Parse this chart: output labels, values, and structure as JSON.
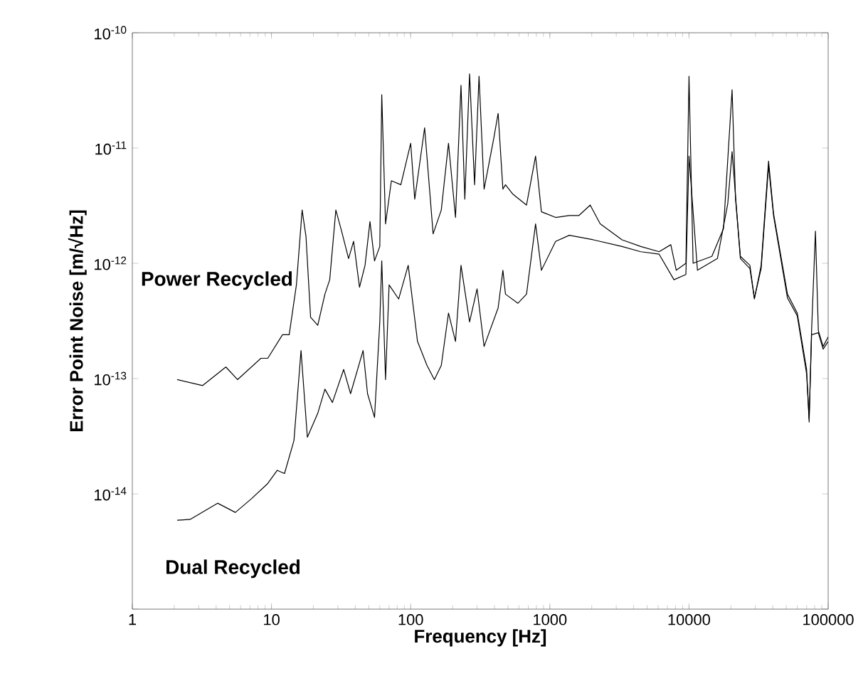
{
  "chart_data": {
    "type": "line",
    "xlabel": "Frequency [Hz]",
    "ylabel": "Error Point Noise [m/√Hz]",
    "log": "xy",
    "grid": false,
    "legend": false,
    "marker": "none",
    "line_style": "solid",
    "xlim": [
      1,
      100000
    ],
    "ylim": [
      1e-15,
      1e-10
    ],
    "xticks": [
      1,
      10,
      100,
      1000,
      10000,
      100000
    ],
    "yticks": [
      {
        "value": 1e-10,
        "label": "10$^{-10}$"
      },
      {
        "value": 1e-11,
        "label": "10$^{-11}$"
      },
      {
        "value": 1e-12,
        "label": "10$^{-12}$"
      },
      {
        "value": 1e-13,
        "label": "10$^{-13}$"
      },
      {
        "value": 1e-14,
        "label": "10$^{-14}$"
      },
      {
        "value": 1e-15,
        "label": null
      }
    ],
    "series": [
      {
        "name": "Power Recycled",
        "color": "#000000",
        "x": [
          2.1,
          3.2,
          4.7,
          5.7,
          8.4,
          9.4,
          12,
          13.4,
          15.1,
          16.6,
          17.7,
          19.1,
          21.5,
          24.2,
          26.2,
          29,
          31.9,
          35.8,
          38.9,
          42.9,
          47,
          51,
          55,
          60,
          62,
          66,
          72.7,
          85,
          100,
          107,
          126,
          145,
          166,
          187,
          210,
          230,
          245,
          265,
          288,
          310,
          337,
          395,
          425,
          460,
          480,
          540,
          680,
          790,
          870,
          1100,
          1380,
          1620,
          1950,
          2300,
          3300,
          4500,
          6100,
          7400,
          8100,
          9500,
          10000,
          10700,
          14600,
          17700,
          20400,
          21600,
          23400,
          27400,
          29500,
          33000,
          37300,
          40500,
          51000,
          60000,
          70000,
          73000,
          76000,
          81000,
          85000,
          92000,
          100000
        ],
        "values": [
          9.8e-14,
          8.7e-14,
          1.26e-13,
          9.8e-14,
          1.5e-13,
          1.5e-13,
          2.4e-13,
          2.4e-13,
          6.5e-13,
          2.9e-12,
          1.7e-12,
          3.4e-13,
          2.9e-13,
          5.4e-13,
          7.2e-13,
          2.9e-12,
          1.9e-12,
          1.1e-12,
          1.55e-12,
          6.2e-13,
          9.6e-13,
          2.3e-12,
          1.05e-12,
          1.4e-12,
          2.9e-11,
          2.2e-12,
          5.2e-12,
          4.8e-12,
          1.1e-11,
          3.6e-12,
          1.5e-11,
          1.8e-12,
          2.9e-12,
          1.1e-11,
          2.5e-12,
          3.5e-11,
          3.6e-12,
          4.4e-11,
          4.8e-12,
          4.2e-11,
          4.4e-12,
          1.2e-11,
          2e-11,
          4.4e-12,
          4.8e-12,
          4e-12,
          3.2e-12,
          8.5e-12,
          2.8e-12,
          2.5e-12,
          2.6e-12,
          2.6e-12,
          3.2e-12,
          2.2e-12,
          1.6e-12,
          1.4e-12,
          1.26e-12,
          1.45e-12,
          8.7e-13,
          1e-12,
          4.2e-11,
          1e-12,
          1.15e-12,
          2e-12,
          3.2e-11,
          3.6e-12,
          1.15e-12,
          9.6e-13,
          4.9e-13,
          9.6e-13,
          7.7e-12,
          2.7e-12,
          5.4e-13,
          3.7e-13,
          1.2e-13,
          4.2e-14,
          2.6e-13,
          1.9e-12,
          2.6e-13,
          1.9e-13,
          2.3e-13
        ]
      },
      {
        "name": "Dual Recycled",
        "color": "#000000",
        "x": [
          2.1,
          2.6,
          4.1,
          5.5,
          7.2,
          9.4,
          11,
          12.4,
          14.5,
          16.3,
          18.1,
          21.5,
          24.2,
          27.4,
          33,
          37,
          45.5,
          49,
          55,
          60,
          62,
          66,
          70,
          82,
          96,
          112,
          131,
          148,
          166,
          187,
          210,
          230,
          265,
          300,
          337,
          425,
          460,
          480,
          590,
          680,
          790,
          870,
          1100,
          1380,
          2050,
          3300,
          4500,
          6100,
          7800,
          9500,
          10000,
          11500,
          16000,
          19000,
          20400,
          23400,
          27400,
          29500,
          33000,
          37300,
          40500,
          51000,
          60000,
          70000,
          73000,
          76000,
          85000,
          92000,
          100000
        ],
        "values": [
          5.9e-15,
          6e-15,
          8.3e-15,
          6.9e-15,
          9.1e-15,
          1.23e-14,
          1.6e-14,
          1.5e-14,
          2.9e-14,
          1.75e-13,
          3.1e-14,
          5e-14,
          8.1e-14,
          6.2e-14,
          1.2e-13,
          7.4e-14,
          1.75e-13,
          7.4e-14,
          4.6e-14,
          3.1e-13,
          1.05e-12,
          9.8e-14,
          6.5e-13,
          4.9e-13,
          9.6e-13,
          2.1e-13,
          1.3e-13,
          9.8e-14,
          1.3e-13,
          3.7e-13,
          2.1e-13,
          9.6e-13,
          3.1e-13,
          6e-13,
          1.9e-13,
          4.1e-13,
          8.7e-13,
          5.4e-13,
          4.5e-13,
          5.4e-13,
          2.2e-12,
          8.7e-13,
          1.55e-12,
          1.75e-12,
          1.6e-12,
          1.4e-12,
          1.26e-12,
          1.2e-12,
          7.2e-13,
          8e-13,
          8.5e-12,
          8.7e-13,
          1.1e-12,
          3.3e-12,
          9.3e-12,
          1.1e-12,
          9e-13,
          5e-13,
          9e-13,
          7e-12,
          2.6e-12,
          5e-13,
          3.5e-13,
          1.1e-13,
          4.5e-14,
          2.4e-13,
          2.5e-13,
          1.8e-13,
          2.1e-13
        ]
      }
    ]
  }
}
